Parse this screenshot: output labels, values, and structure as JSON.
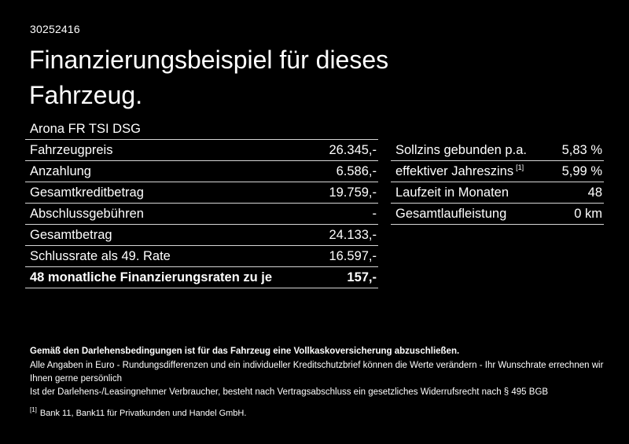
{
  "page": {
    "doc_id": "30252416",
    "title": "Finanzierungsbeispiel für dieses Fahrzeug.",
    "vehicle_model": "Arona FR TSI DSG"
  },
  "colors": {
    "background": "#000000",
    "text": "#ffffff",
    "divider": "#d6d6d6"
  },
  "finance": {
    "rows": [
      {
        "label": "Fahrzeugpreis",
        "value": "26.345,-"
      },
      {
        "label": "Anzahlung",
        "value": "6.586,-"
      },
      {
        "label": "Gesamtkreditbetrag",
        "value": "19.759,-"
      },
      {
        "label": "Abschlussgebühren",
        "value": "-"
      },
      {
        "label": "Gesamtbetrag",
        "value": "24.133,-"
      },
      {
        "label": "Schlussrate als 49. Rate",
        "value": "16.597,-"
      },
      {
        "label": "48 monatliche Finanzierungsraten zu je",
        "value": "157,-"
      }
    ]
  },
  "conditions": {
    "rows": [
      {
        "label": "Sollzins gebunden p.a.",
        "value": "5,83 %"
      },
      {
        "label": "effektiver Jahreszins",
        "sup": "[1]",
        "value": "5,99 %"
      },
      {
        "label": "Laufzeit in Monaten",
        "value": "48"
      },
      {
        "label": "Gesamtlaufleistung",
        "value": "0 km"
      }
    ]
  },
  "footer": {
    "disclaimer_bold": "Gemäß den Darlehensbedingungen ist für das Fahrzeug eine Vollkaskoversicherung abzuschließen.",
    "line1": "Alle Angaben in Euro - Rundungsdifferenzen und ein individueller Kreditschutzbrief können die Werte verändern - Ihr Wunschrate errechnen wir Ihnen gerne persönlich",
    "line2": "Ist der Darlehens-/Leasingnehmer Verbraucher, besteht nach Vertragsabschluss ein gesetzliches Widerrufsrecht nach § 495 BGB",
    "footnote_marker": "[1]",
    "footnote_text": "Bank 11, Bank11 für Privatkunden und Handel GmbH."
  }
}
